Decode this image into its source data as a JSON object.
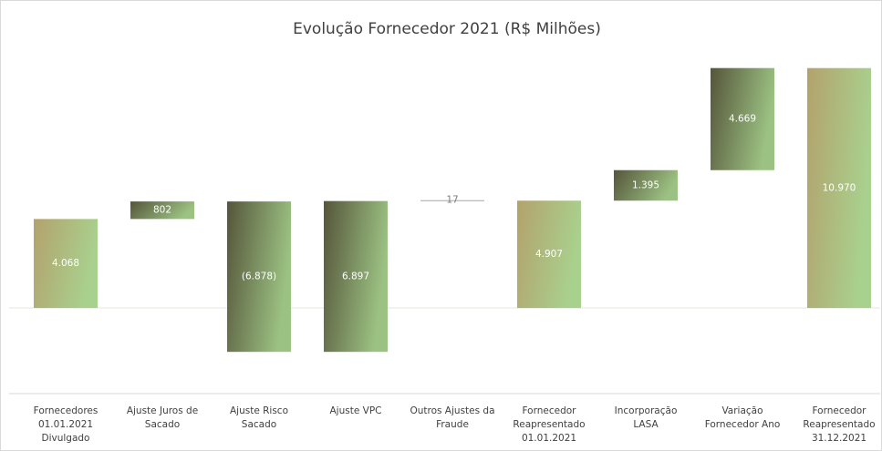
{
  "chart_data": {
    "type": "waterfall",
    "title": "Evolução Fornecedor 2021 (R$ Milhões)",
    "categories": [
      "Fornecedores\n01.01.2021\nDivulgado",
      "Ajuste Juros de\nSacado",
      "Ajuste Risco\nSacado",
      "Ajuste VPC",
      "Outros Ajustes da\nFraude",
      "Fornecedor\nReapresentado\n01.01.2021",
      "Incorporação\nLASA",
      "Variação\nFornecedor Ano",
      "Fornecedor\nReapresentado\n31.12.2021"
    ],
    "values": [
      4068,
      802,
      -6878,
      6897,
      17,
      4907,
      1395,
      4669,
      10970
    ],
    "value_labels": [
      "4.068",
      "802",
      "(6.878)",
      "6.897",
      "17",
      "4.907",
      "1.395",
      "4.669",
      "10.970"
    ],
    "totals": [
      true,
      false,
      false,
      false,
      false,
      true,
      false,
      false,
      true
    ],
    "total_colors": [
      "#b3a26c",
      "#a9d18e"
    ],
    "step_colors": [
      "#55553a",
      "#9cc283"
    ],
    "ylim": [
      -4000,
      12500
    ]
  }
}
